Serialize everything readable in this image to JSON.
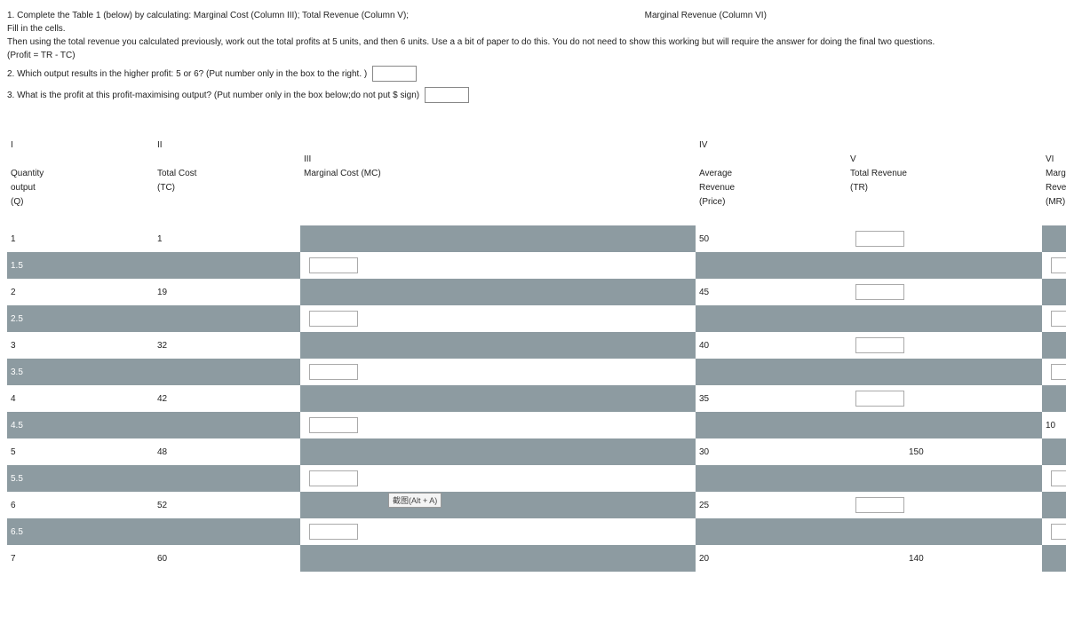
{
  "instructions": {
    "line1a": "1. Complete the Table 1 (below)  by calculating: Marginal Cost (Column III);  Total Revenue (Column V);",
    "line1b": "Marginal Revenue (Column VI)",
    "line2": "Fill in the cells.",
    "line3": "Then using the total revenue you calculated previously, work out the total profits at 5 units, and  then 6 units.   Use a a bit of paper to do this. You do not need to show this working but will require the answer for doing the final two questions.",
    "line4": "(Profit = TR - TC)",
    "q2": "2. Which output results in the higher profit: 5 or 6?  (Put number only in the box to the right. )",
    "q3": "3. What is the profit at this profit-maximising output? (Put number only in the box below;do not put $ sign)"
  },
  "headers": {
    "c1": {
      "roman": "I",
      "l1": "Quantity",
      "l2": "output",
      "l3": "(Q)"
    },
    "c2": {
      "roman": "II",
      "l1": "Total Cost",
      "l2": "(TC)"
    },
    "c3": {
      "roman": "III",
      "l1": "Marginal Cost (MC)"
    },
    "c4": {
      "roman": "IV",
      "l1": "Average",
      "l2": "Revenue",
      "l3": "(Price)"
    },
    "c5": {
      "roman": "V",
      "l1": "Total Revenue",
      "l2": "(TR)"
    },
    "c6": {
      "roman": "VI",
      "l1": "Marginal Revenue",
      "l2": "(MR)"
    }
  },
  "rows": [
    {
      "q": "1",
      "tc": "1",
      "ar": "50",
      "tr": "",
      "mc_input": false,
      "mr_input": false,
      "tr_input": true,
      "shade": false,
      "mr_val": ""
    },
    {
      "q": "1.5",
      "tc": "",
      "ar": "",
      "tr": "",
      "mc_input": true,
      "mr_input": true,
      "tr_input": false,
      "shade": true,
      "mr_val": ""
    },
    {
      "q": "2",
      "tc": "19",
      "ar": "45",
      "tr": "",
      "mc_input": false,
      "mr_input": false,
      "tr_input": true,
      "shade": false,
      "mr_val": ""
    },
    {
      "q": "2.5",
      "tc": "",
      "ar": "",
      "tr": "",
      "mc_input": true,
      "mr_input": true,
      "tr_input": false,
      "shade": true,
      "mr_val": ""
    },
    {
      "q": "3",
      "tc": "32",
      "ar": "40",
      "tr": "",
      "mc_input": false,
      "mr_input": false,
      "tr_input": true,
      "shade": false,
      "mr_val": ""
    },
    {
      "q": "3.5",
      "tc": "",
      "ar": "",
      "tr": "",
      "mc_input": true,
      "mr_input": true,
      "tr_input": false,
      "shade": true,
      "mr_val": ""
    },
    {
      "q": "4",
      "tc": "42",
      "ar": "35",
      "tr": "",
      "mc_input": false,
      "mr_input": false,
      "tr_input": true,
      "shade": false,
      "mr_val": ""
    },
    {
      "q": "4.5",
      "tc": "",
      "ar": "",
      "tr": "",
      "mc_input": true,
      "mr_input": false,
      "tr_input": false,
      "shade": true,
      "mr_val": "10"
    },
    {
      "q": "5",
      "tc": "48",
      "ar": "30",
      "tr": "150",
      "mc_input": false,
      "mr_input": false,
      "tr_input": false,
      "shade": false,
      "mr_val": ""
    },
    {
      "q": "5.5",
      "tc": "",
      "ar": "",
      "tr": "",
      "mc_input": true,
      "mr_input": true,
      "tr_input": false,
      "shade": true,
      "mr_val": ""
    },
    {
      "q": "6",
      "tc": "52",
      "ar": "25",
      "tr": "",
      "mc_input": false,
      "mr_input": false,
      "tr_input": true,
      "shade": false,
      "mr_val": "",
      "alt_a": true
    },
    {
      "q": "6.5",
      "tc": "",
      "ar": "",
      "tr": "",
      "mc_input": true,
      "mr_input": true,
      "tr_input": false,
      "shade": true,
      "mr_val": ""
    },
    {
      "q": "7",
      "tc": "60",
      "ar": "20",
      "tr": "140",
      "mc_input": false,
      "mr_input": false,
      "tr_input": false,
      "shade": false,
      "mr_val": ""
    }
  ],
  "alt_label": "截图(Alt + A)",
  "colors": {
    "shade": "#8d9ba1"
  }
}
